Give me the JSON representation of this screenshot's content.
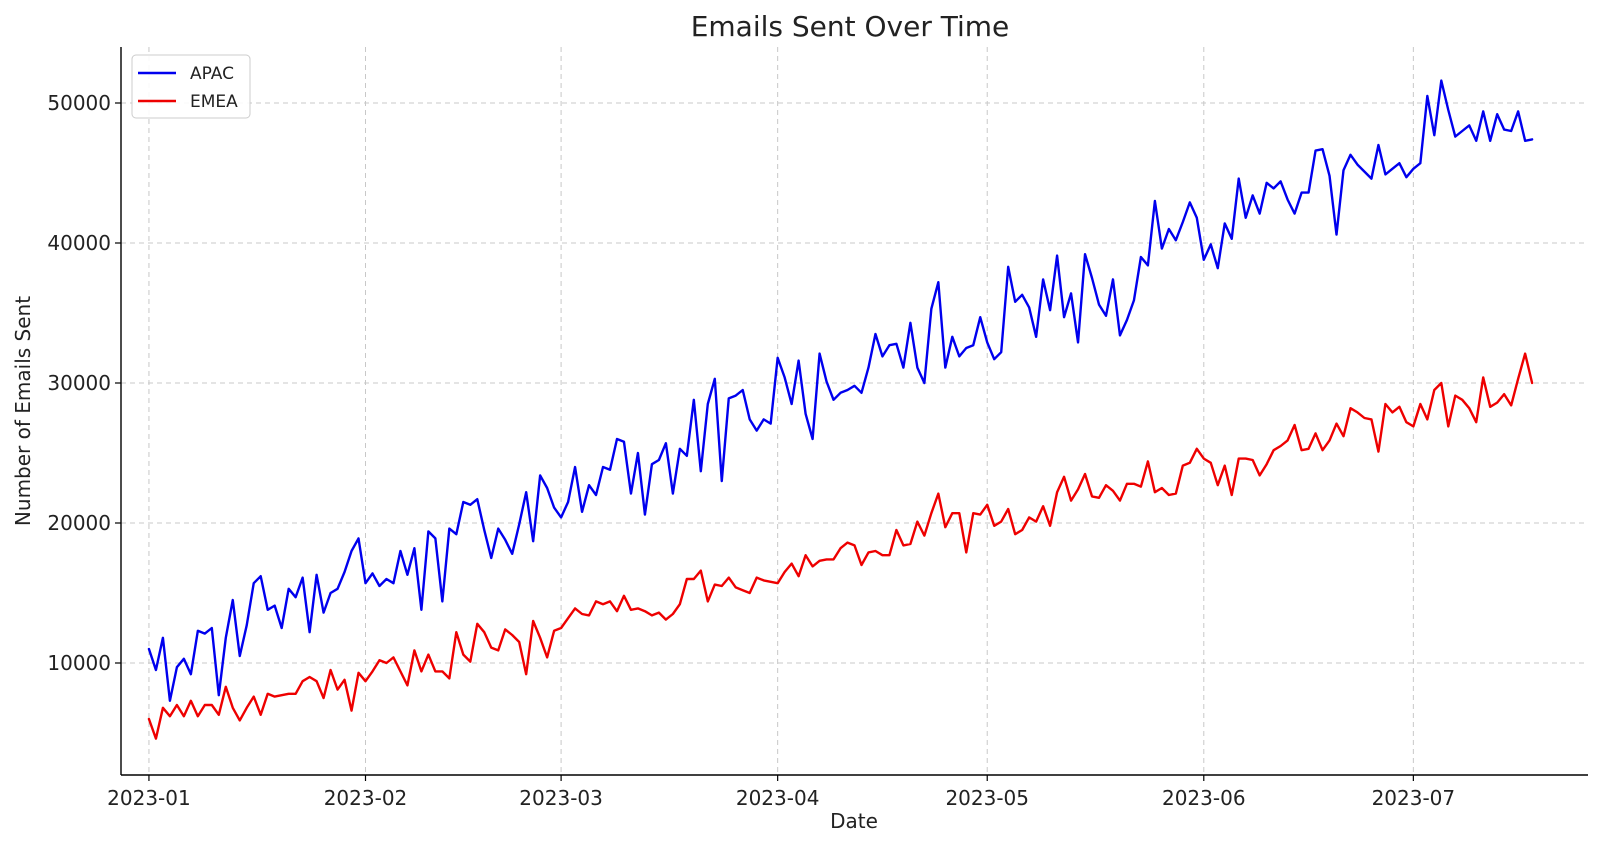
{
  "chart_data": {
    "type": "line",
    "title": "Emails Sent Over Time",
    "xlabel": "Date",
    "ylabel": "Number of Emails Sent",
    "x_range": [
      "2022-12-28",
      "2023-07-26"
    ],
    "ylim": [
      2000,
      54000
    ],
    "y_ticks": [
      10000,
      20000,
      30000,
      40000,
      50000
    ],
    "x_ticks": [
      {
        "value": "2023-01-01",
        "label": "2023-01"
      },
      {
        "value": "2023-02-01",
        "label": "2023-02"
      },
      {
        "value": "2023-03-01",
        "label": "2023-03"
      },
      {
        "value": "2023-04-01",
        "label": "2023-04"
      },
      {
        "value": "2023-05-01",
        "label": "2023-05"
      },
      {
        "value": "2023-06-01",
        "label": "2023-06"
      },
      {
        "value": "2023-07-01",
        "label": "2023-07"
      }
    ],
    "grid": true,
    "legend_position": "top-left",
    "start_date": "2023-01-01",
    "series": [
      {
        "name": "APAC",
        "color": "#0000ee",
        "values": [
          11000,
          9500,
          11800,
          7300,
          9700,
          10300,
          9200,
          12300,
          12100,
          12500,
          7700,
          11800,
          14500,
          10500,
          12700,
          15700,
          16200,
          13800,
          14100,
          12500,
          15300,
          14700,
          16100,
          12200,
          16300,
          13600,
          15000,
          15300,
          16500,
          18000,
          18900,
          15700,
          16400,
          15500,
          16000,
          15700,
          18000,
          16300,
          18200,
          13800,
          19400,
          18900,
          14400,
          19600,
          19200,
          21500,
          21300,
          21700,
          19500,
          17500,
          19600,
          18800,
          17800,
          19900,
          22200,
          18700,
          23400,
          22500,
          21100,
          20400,
          21500,
          24000,
          20800,
          22700,
          22000,
          24000,
          23800,
          26000,
          25800,
          22100,
          25000,
          20600,
          24200,
          24500,
          25700,
          22100,
          25300,
          24800,
          28800,
          23700,
          28500,
          30300,
          23000,
          28900,
          29100,
          29500,
          27400,
          26600,
          27400,
          27100,
          31800,
          30400,
          28500,
          31600,
          27800,
          26000,
          32100,
          30100,
          28800,
          29300,
          29500,
          29800,
          29300,
          31100,
          33500,
          31900,
          32700,
          32800,
          31100,
          34300,
          31100,
          30000,
          35300,
          37200,
          31100,
          33300,
          31900,
          32500,
          32700,
          34700,
          32900,
          31700,
          32200,
          38300,
          35800,
          36300,
          35400,
          33300,
          37400,
          35200,
          39100,
          34700,
          36400,
          32900,
          39200,
          37500,
          35600,
          34800,
          37400,
          33400,
          34500,
          35900,
          39000,
          38400,
          43000,
          39600,
          41000,
          40200,
          41500,
          42900,
          41800,
          38800,
          39900,
          38200,
          41400,
          40300,
          44600,
          41800,
          43400,
          42100,
          44300,
          43900,
          44400,
          43100,
          42100,
          43600,
          43600,
          46600,
          46700,
          44800,
          40600,
          45200,
          46300,
          45600,
          45100,
          44600,
          47000,
          44900,
          45300,
          45700,
          44700,
          45300,
          45700,
          50500,
          47700,
          51600,
          49500,
          47600,
          48000,
          48400,
          47300,
          49400,
          47300,
          49200,
          48100,
          48000,
          49400,
          47300,
          47400
        ]
      },
      {
        "name": "EMEA",
        "color": "#ee0000",
        "values": [
          6000,
          4600,
          6800,
          6200,
          7000,
          6200,
          7300,
          6200,
          7000,
          7000,
          6300,
          8300,
          6800,
          5900,
          6800,
          7600,
          6300,
          7800,
          7600,
          7700,
          7800,
          7800,
          8700,
          9000,
          8700,
          7500,
          9500,
          8100,
          8800,
          6600,
          9300,
          8700,
          9400,
          10200,
          10000,
          10400,
          9400,
          8400,
          10900,
          9400,
          10600,
          9400,
          9400,
          8900,
          12200,
          10600,
          10100,
          12800,
          12200,
          11100,
          10900,
          12400,
          12000,
          11500,
          9200,
          13000,
          11800,
          10400,
          12300,
          12500,
          13200,
          13900,
          13500,
          13400,
          14400,
          14200,
          14400,
          13700,
          14800,
          13800,
          13900,
          13700,
          13400,
          13600,
          13100,
          13500,
          14200,
          16000,
          16000,
          16600,
          14400,
          15600,
          15500,
          16100,
          15400,
          15200,
          15000,
          16100,
          15900,
          15800,
          15700,
          16500,
          17100,
          16200,
          17700,
          16900,
          17300,
          17400,
          17400,
          18200,
          18600,
          18400,
          17000,
          17900,
          18000,
          17700,
          17700,
          19500,
          18400,
          18500,
          20100,
          19100,
          20700,
          22100,
          19700,
          20700,
          20700,
          17900,
          20700,
          20600,
          21300,
          19800,
          20100,
          21000,
          19200,
          19500,
          20400,
          20100,
          21200,
          19800,
          22200,
          23300,
          21600,
          22400,
          23500,
          21900,
          21800,
          22700,
          22300,
          21600,
          22800,
          22800,
          22600,
          24400,
          22200,
          22500,
          22000,
          22100,
          24100,
          24300,
          25300,
          24600,
          24300,
          22700,
          24100,
          22000,
          24600,
          24600,
          24500,
          23400,
          24200,
          25200,
          25500,
          25900,
          27000,
          25200,
          25300,
          26400,
          25200,
          25900,
          27100,
          26200,
          28200,
          27900,
          27500,
          27400,
          25100,
          28500,
          27900,
          28300,
          27200,
          26900,
          28500,
          27400,
          29500,
          30000,
          26900,
          29100,
          28800,
          28200,
          27200,
          30400,
          28300,
          28600,
          29200,
          28400,
          30300,
          32100,
          30000
        ]
      }
    ]
  }
}
